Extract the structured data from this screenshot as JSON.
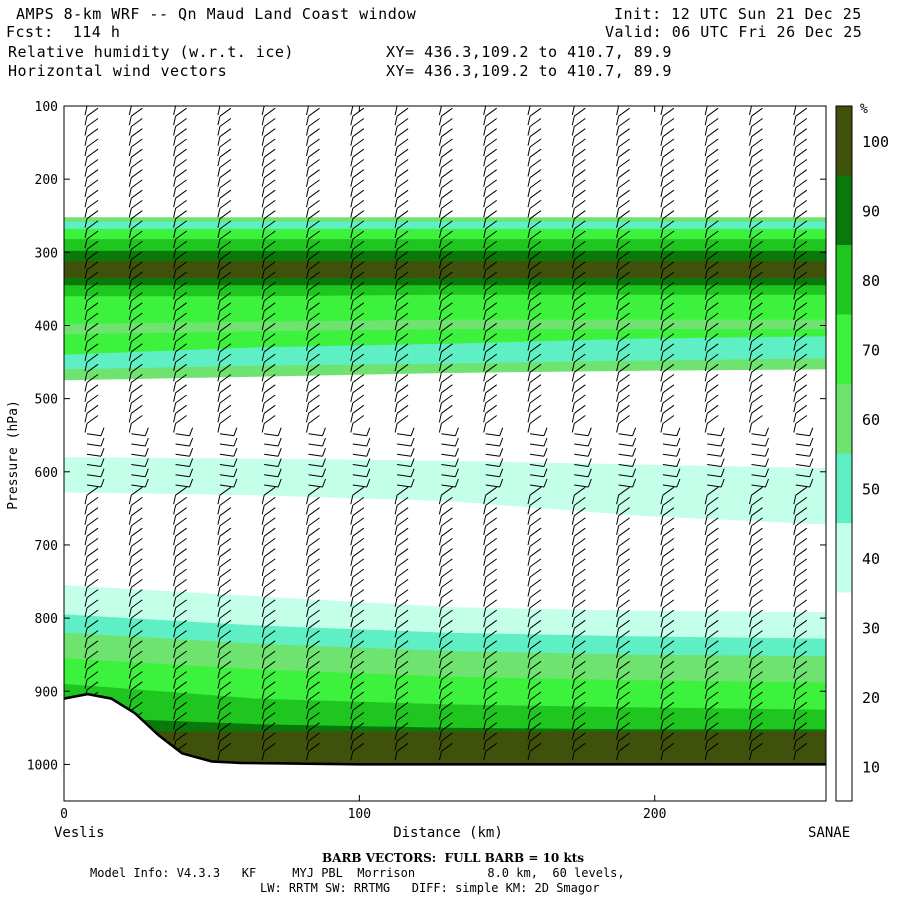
{
  "header": {
    "title": "AMPS 8-km WRF -- Qn Maud Land Coast window",
    "fcst": "Fcst:  114 h",
    "init": "Init: 12 UTC Sun 21 Dec 25",
    "valid": "Valid: 06 UTC Fri 26 Dec 25",
    "field1": "Relative humidity (w.r.t. ice)",
    "field2": "Horizontal wind vectors",
    "xy1": "XY= 436.3,109.2 to 410.7, 89.9",
    "xy2": "XY= 436.3,109.2 to 410.7, 89.9"
  },
  "footer": {
    "barb": "BARB VECTORS:  FULL BARB = 10 kts",
    "model1": "Model Info: V4.3.3   KF     MYJ PBL  Morrison          8.0 km,  60 levels,",
    "model2": "LW: RRTM SW: RRTMG   DIFF: simple KM: 2D Smagor"
  },
  "chart_data": {
    "type": "heatmap",
    "title": "Relative humidity (w.r.t. ice)",
    "xlabel": "Distance (km)",
    "ylabel": "Pressure (hPa)",
    "x_start_label": "Veslis",
    "x_end_label": "SANAE",
    "xlim": [
      0,
      258
    ],
    "ylim": [
      1050,
      100
    ],
    "xticks": [
      0,
      100,
      200
    ],
    "yticks": [
      100,
      200,
      300,
      400,
      500,
      600,
      700,
      800,
      900,
      1000
    ],
    "colorbar": {
      "unit": "%",
      "levels": [
        10,
        20,
        30,
        40,
        50,
        60,
        70,
        80,
        90,
        100
      ],
      "colors": [
        "#ffffff",
        "#ffffff",
        "#ffffff",
        "#c4ffe9",
        "#5fefc4",
        "#6fe36f",
        "#3df23d",
        "#1fc61f",
        "#0b780b",
        "#3f510b"
      ]
    },
    "bands": [
      {
        "color": "#6fe36f",
        "top": [
          252,
          252,
          252,
          252,
          252
        ],
        "bot": [
          475,
          470,
          465,
          462,
          460
        ]
      },
      {
        "color": "#5fefc4",
        "top": [
          258,
          258,
          258,
          258,
          258
        ],
        "bot": [
          460,
          455,
          452,
          448,
          445
        ]
      },
      {
        "color": "#3df23d",
        "top": [
          268,
          268,
          268,
          268,
          268
        ],
        "bot": [
          440,
          430,
          425,
          418,
          415
        ]
      },
      {
        "color": "#6fe36f",
        "top": [
          398,
          395,
          392,
          392,
          392
        ],
        "bot": [
          412,
          408,
          405,
          405,
          405
        ]
      },
      {
        "color": "#1fc61f",
        "top": [
          282,
          282,
          282,
          282,
          282
        ],
        "bot": [
          360,
          360,
          358,
          358,
          358
        ]
      },
      {
        "color": "#0b780b",
        "top": [
          298,
          298,
          298,
          298,
          298
        ],
        "bot": [
          345,
          345,
          345,
          345,
          345
        ]
      },
      {
        "color": "#3f510b",
        "top": [
          312,
          312,
          312,
          312,
          312
        ],
        "bot": [
          335,
          335,
          335,
          335,
          335
        ]
      },
      {
        "color": "#c4ffe9",
        "top": [
          580,
          582,
          585,
          590,
          595
        ],
        "bot": [
          628,
          632,
          640,
          660,
          672
        ]
      },
      {
        "color": "#c4ffe9",
        "top": [
          755,
          770,
          785,
          790,
          792
        ],
        "bot": [
          1000,
          1000,
          1000,
          1000,
          1000
        ]
      },
      {
        "color": "#5fefc4",
        "top": [
          795,
          810,
          820,
          825,
          828
        ],
        "bot": [
          1000,
          1000,
          1000,
          1000,
          1000
        ]
      },
      {
        "color": "#6fe36f",
        "top": [
          820,
          835,
          845,
          850,
          852
        ],
        "bot": [
          1000,
          1000,
          1000,
          1000,
          1000
        ]
      },
      {
        "color": "#3df23d",
        "top": [
          855,
          870,
          880,
          885,
          888
        ],
        "bot": [
          1000,
          1000,
          1000,
          1000,
          1000
        ]
      },
      {
        "color": "#1fc61f",
        "top": [
          890,
          910,
          918,
          922,
          925
        ],
        "bot": [
          1000,
          1000,
          1000,
          1000,
          1000
        ]
      },
      {
        "color": "#0b780b",
        "top": [
          935,
          945,
          950,
          952,
          952
        ],
        "bot": [
          1000,
          1000,
          1000,
          1000,
          1000
        ]
      },
      {
        "color": "#3f510b",
        "top": [
          955,
          955,
          955,
          955,
          955
        ],
        "bot": [
          1000,
          1000,
          1000,
          1000,
          1000
        ]
      }
    ],
    "band_x": [
      0,
      65,
      130,
      195,
      258
    ],
    "terrain": [
      [
        0,
        910
      ],
      [
        8,
        904
      ],
      [
        16,
        910
      ],
      [
        24,
        930
      ],
      [
        32,
        960
      ],
      [
        40,
        985
      ],
      [
        50,
        996
      ],
      [
        60,
        998
      ],
      [
        100,
        1000
      ],
      [
        258,
        1000
      ]
    ]
  }
}
